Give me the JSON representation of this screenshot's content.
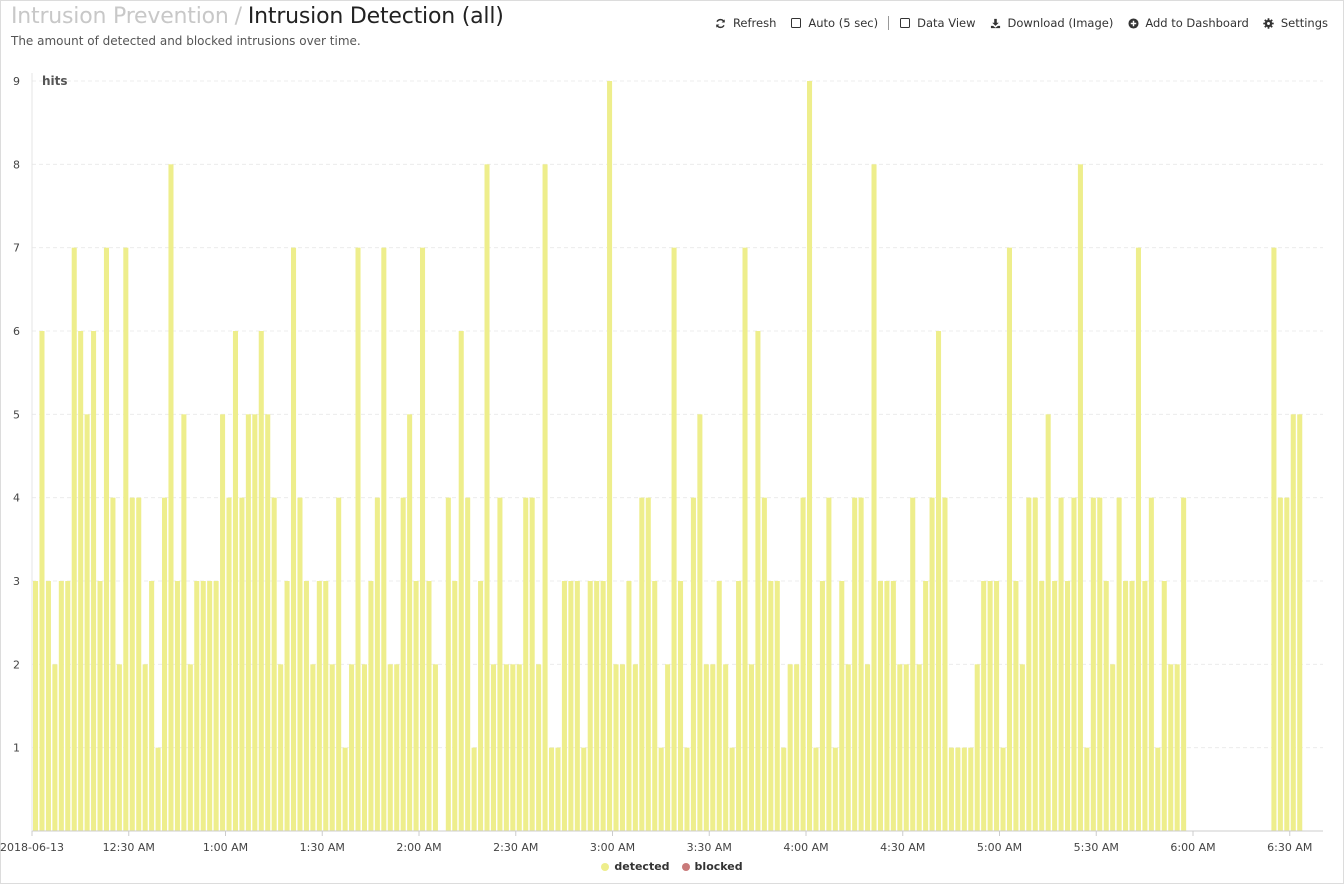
{
  "header": {
    "breadcrumb_parent": "Intrusion Prevention",
    "breadcrumb_separator": "/",
    "title": "Intrusion Detection (all)",
    "subtitle": "The amount of detected and blocked intrusions over time."
  },
  "toolbar": {
    "refresh_label": "Refresh",
    "auto_label": "Auto (5 sec)",
    "data_view_label": "Data View",
    "download_label": "Download (Image)",
    "add_dashboard_label": "Add to Dashboard",
    "settings_label": "Settings"
  },
  "chart_data": {
    "type": "bar",
    "stacked": true,
    "ylabel": "hits",
    "ylim": [
      0,
      9
    ],
    "yticks": [
      "1",
      "2",
      "3",
      "4",
      "5",
      "6",
      "7",
      "8",
      "9"
    ],
    "grid": true,
    "legend_position": "bottom",
    "x_start": "2018-06-13 00:00",
    "interval_minutes": 2,
    "xticks": [
      "2018-06-13",
      "12:30 AM",
      "1:00 AM",
      "1:30 AM",
      "2:00 AM",
      "2:30 AM",
      "3:00 AM",
      "3:30 AM",
      "4:00 AM",
      "4:30 AM",
      "5:00 AM",
      "5:30 AM",
      "6:00 AM",
      "6:30 AM"
    ],
    "series": [
      {
        "name": "detected",
        "color": "#eeee8c",
        "values": [
          3,
          6,
          3,
          2,
          3,
          3,
          7,
          6,
          5,
          6,
          3,
          7,
          4,
          2,
          7,
          4,
          4,
          2,
          3,
          1,
          4,
          8,
          3,
          5,
          2,
          3,
          3,
          3,
          3,
          5,
          4,
          6,
          4,
          5,
          5,
          6,
          5,
          4,
          2,
          3,
          7,
          4,
          3,
          2,
          3,
          3,
          2,
          4,
          1,
          2,
          7,
          2,
          3,
          4,
          7,
          2,
          2,
          4,
          5,
          3,
          7,
          3,
          2,
          0,
          4,
          3,
          6,
          4,
          1,
          3,
          8,
          2,
          4,
          2,
          2,
          2,
          4,
          4,
          2,
          8,
          1,
          1,
          3,
          3,
          3,
          1,
          3,
          3,
          3,
          9,
          2,
          2,
          3,
          2,
          4,
          4,
          3,
          1,
          2,
          7,
          3,
          1,
          4,
          5,
          2,
          2,
          3,
          2,
          1,
          3,
          7,
          2,
          6,
          4,
          3,
          3,
          1,
          2,
          2,
          4,
          9,
          1,
          3,
          4,
          1,
          3,
          2,
          4,
          4,
          2,
          8,
          3,
          3,
          3,
          2,
          2,
          4,
          2,
          3,
          4,
          6,
          4,
          1,
          1,
          1,
          1,
          2,
          3,
          3,
          3,
          1,
          7,
          3,
          2,
          4,
          4,
          3,
          5,
          3,
          4,
          3,
          4,
          8,
          1,
          4,
          4,
          3,
          2,
          4,
          3,
          3,
          7,
          3,
          4,
          1,
          3,
          2,
          2,
          4,
          0,
          0,
          0,
          0,
          0,
          0,
          0,
          0,
          0,
          0,
          0,
          0,
          0,
          7,
          4,
          4,
          5,
          5
        ]
      },
      {
        "name": "blocked",
        "color": "#c97a7a",
        "values": []
      }
    ]
  }
}
